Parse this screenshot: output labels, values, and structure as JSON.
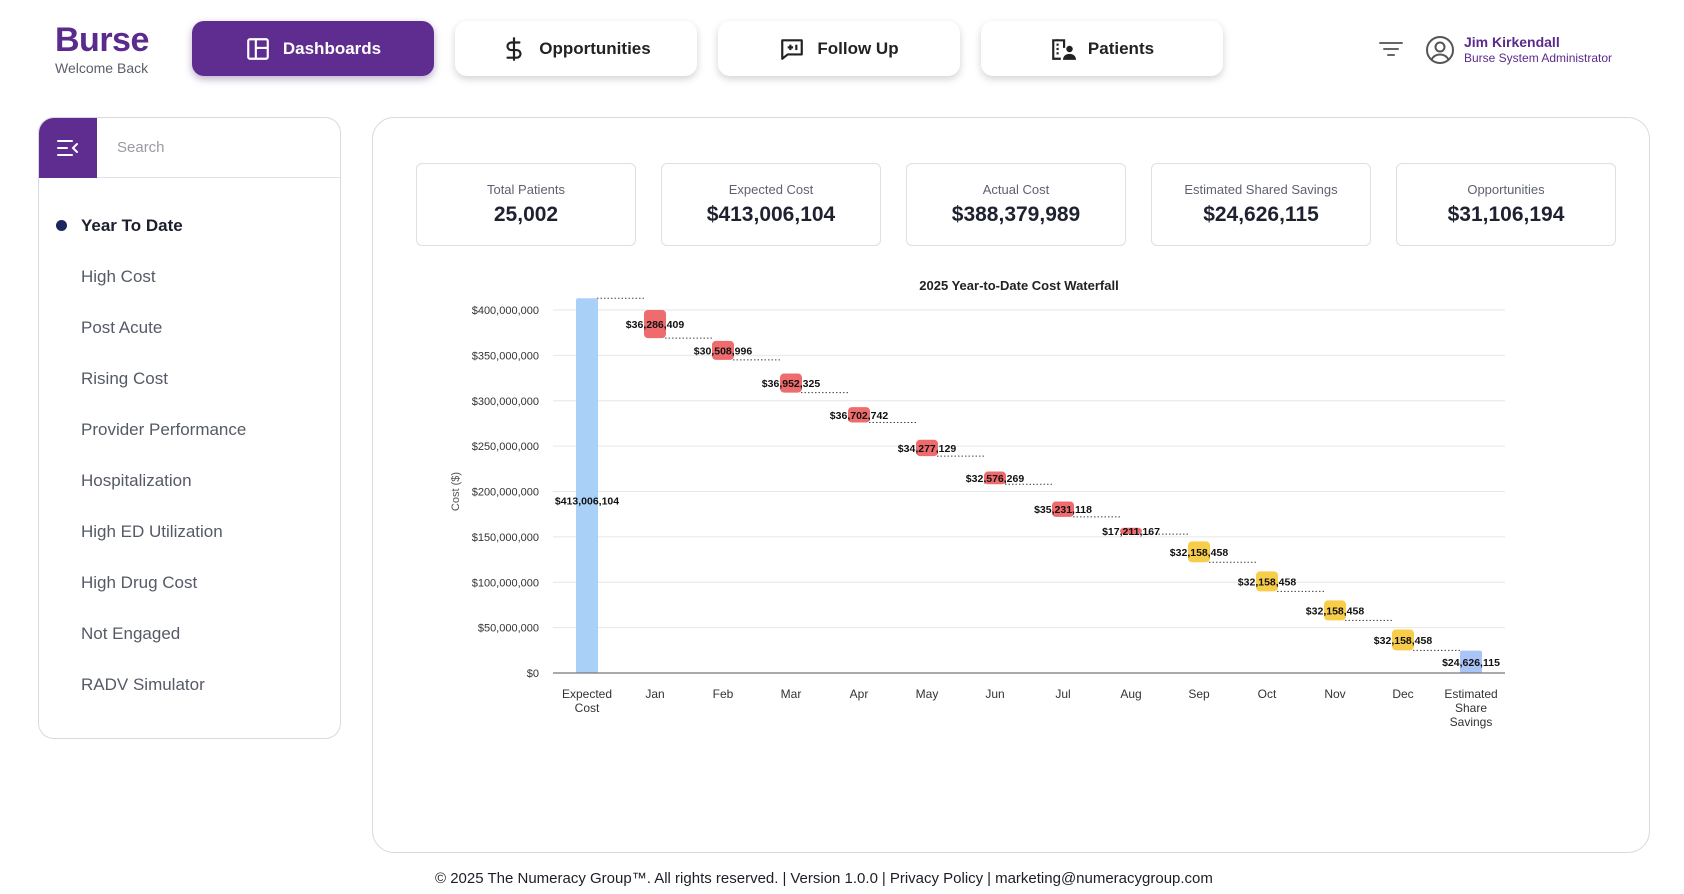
{
  "brand": {
    "name": "Burse",
    "subtitle": "Welcome Back"
  },
  "nav": [
    {
      "label": "Dashboards",
      "icon": "dashboard-icon",
      "active": true
    },
    {
      "label": "Opportunities",
      "icon": "dollar-icon",
      "active": false
    },
    {
      "label": "Follow Up",
      "icon": "message-plus-icon",
      "active": false
    },
    {
      "label": "Patients",
      "icon": "building-user-icon",
      "active": false
    }
  ],
  "user": {
    "name": "Jim Kirkendall",
    "role": "Burse System Administrator",
    "icon": "user-circle-icon"
  },
  "sidebar": {
    "search_placeholder": "Search",
    "toggle_icon": "menu-collapse-icon",
    "items": [
      {
        "label": "Year To Date",
        "active": true
      },
      {
        "label": "High Cost",
        "active": false
      },
      {
        "label": "Post Acute",
        "active": false
      },
      {
        "label": "Rising Cost",
        "active": false
      },
      {
        "label": "Provider Performance",
        "active": false
      },
      {
        "label": "Hospitalization",
        "active": false
      },
      {
        "label": "High ED Utilization",
        "active": false
      },
      {
        "label": "High Drug Cost",
        "active": false
      },
      {
        "label": "Not Engaged",
        "active": false
      },
      {
        "label": "RADV Simulator",
        "active": false
      }
    ]
  },
  "kpis": [
    {
      "label": "Total Patients",
      "value": "25,002"
    },
    {
      "label": "Expected Cost",
      "value": "$413,006,104"
    },
    {
      "label": "Actual Cost",
      "value": "$388,379,989"
    },
    {
      "label": "Estimated Shared Savings",
      "value": "$24,626,115"
    },
    {
      "label": "Opportunities",
      "value": "$31,106,194"
    }
  ],
  "chart_data": {
    "type": "bar",
    "subtype": "waterfall",
    "title": "2025 Year-to-Date Cost Waterfall",
    "xlabel": "",
    "ylabel": "Cost ($)",
    "ylim": [
      0,
      400000000
    ],
    "yticks": [
      "$0",
      "$50,000,000",
      "$100,000,000",
      "$150,000,000",
      "$200,000,000",
      "$250,000,000",
      "$300,000,000",
      "$350,000,000",
      "$400,000,000"
    ],
    "ytick_values": [
      0,
      50000000,
      100000000,
      150000000,
      200000000,
      250000000,
      300000000,
      350000000,
      400000000
    ],
    "grid": true,
    "legend": "none",
    "categories": [
      "Expected Cost",
      "Jan",
      "Feb",
      "Mar",
      "Apr",
      "May",
      "Jun",
      "Jul",
      "Aug",
      "Sep",
      "Oct",
      "Nov",
      "Dec",
      "Estimated Share Savings"
    ],
    "category_lines": [
      [
        "Expected",
        "Cost"
      ],
      [
        "Jan"
      ],
      [
        "Feb"
      ],
      [
        "Mar"
      ],
      [
        "Apr"
      ],
      [
        "May"
      ],
      [
        "Jun"
      ],
      [
        "Jul"
      ],
      [
        "Aug"
      ],
      [
        "Sep"
      ],
      [
        "Oct"
      ],
      [
        "Nov"
      ],
      [
        "Dec"
      ],
      [
        "Estimated",
        "Share",
        "Savings"
      ]
    ],
    "values": [
      413006104,
      36286409,
      30508996,
      36952325,
      36702742,
      34277129,
      32576269,
      35231118,
      17211167,
      32158458,
      32158458,
      32158458,
      32158458,
      24626115
    ],
    "value_labels": [
      "$413,006,104",
      "$36,286,409",
      "$30,508,996",
      "$36,952,325",
      "$36,702,742",
      "$34,277,129",
      "$32,576,269",
      "$35,231,118",
      "$17,211,167",
      "$32,158,458",
      "$32,158,458",
      "$32,158,458",
      "$32,158,458",
      "$24,626,115"
    ],
    "bar_tops": [
      413006104,
      400000000,
      366000000,
      330000000,
      293000000,
      257000000,
      222000000,
      189000000,
      160000000,
      145000000,
      112000000,
      80000000,
      48000000,
      24626115
    ],
    "bar_bottoms": [
      0,
      369000000,
      345000000,
      309000000,
      276000000,
      239000000,
      208000000,
      172000000,
      153000000,
      122000000,
      90000000,
      58000000,
      25000000,
      0
    ],
    "bar_kinds": [
      "total",
      "actual",
      "actual",
      "actual",
      "actual",
      "actual",
      "actual",
      "actual",
      "actual",
      "projected",
      "projected",
      "projected",
      "projected",
      "total"
    ],
    "colors": {
      "total": "#a9d0f7",
      "actual": "#ee6b6e",
      "projected": "#f7cd4a",
      "savings": "#a9c4f7"
    }
  },
  "footer": {
    "copyright": "© 2025 The Numeracy Group™. All rights reserved.",
    "version": "Version 1.0.0",
    "privacy": "Privacy Policy",
    "email": "marketing@numeracygroup.com"
  }
}
